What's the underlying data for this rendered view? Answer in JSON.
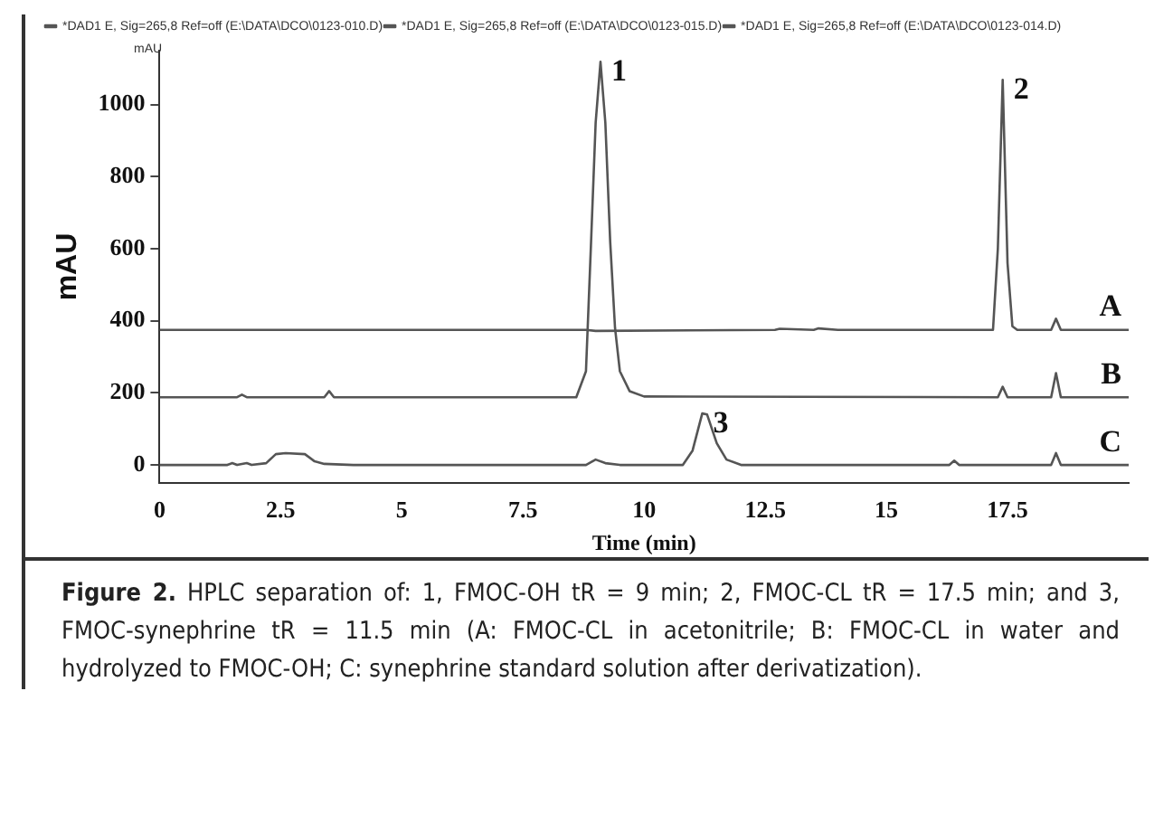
{
  "chart_data": {
    "type": "line",
    "xlabel": "Time (min)",
    "ylabel": "mAU",
    "xlim": [
      0,
      20
    ],
    "xticks": [
      0,
      2.5,
      5,
      7.5,
      10,
      12.5,
      15,
      17.5
    ],
    "ylim": [
      -50,
      1150
    ],
    "yticks": [
      0,
      200,
      400,
      600,
      800,
      1000
    ],
    "grid": false,
    "legend": "top left",
    "marker": "none",
    "line_style": "solid",
    "series": [
      {
        "name": "*DAD1 E, Sig=265,8 Ref=off (E:\\DATA\\DCO\\0123-010.D)",
        "color": "#555555",
        "x": [
          0,
          8.8,
          9.0,
          12.7,
          12.8,
          13.5,
          13.6,
          14.0,
          17.2,
          17.3,
          17.4,
          17.5,
          17.6,
          17.7,
          18.4,
          18.5,
          18.6,
          20
        ],
        "values": [
          375,
          375,
          372,
          375,
          378,
          375,
          379,
          375,
          375,
          600,
          1069,
          560,
          385,
          375,
          375,
          406,
          375,
          375
        ]
      },
      {
        "name": "*DAD1 E, Sig=265,8 Ref=off (E:\\DATA\\DCO\\0123-015.D)",
        "color": "#555555",
        "x": [
          0,
          1.6,
          1.7,
          1.8,
          3.4,
          3.5,
          3.6,
          8.6,
          8.8,
          8.9,
          9.0,
          9.1,
          9.2,
          9.3,
          9.4,
          9.5,
          9.7,
          10,
          17.3,
          17.4,
          17.5,
          18.4,
          18.5,
          18.6,
          20
        ],
        "values": [
          188,
          188,
          195,
          188,
          188,
          205,
          188,
          188,
          260,
          600,
          950,
          1119,
          950,
          620,
          380,
          260,
          205,
          190,
          188,
          217,
          188,
          188,
          255,
          188,
          188
        ]
      },
      {
        "name": "*DAD1 E, Sig=265,8 Ref=off (E:\\DATA\\DCO\\0123-014.D)",
        "color": "#555555",
        "x": [
          0,
          1.4,
          1.5,
          1.6,
          1.8,
          1.9,
          2.2,
          2.4,
          2.6,
          3.0,
          3.2,
          3.4,
          4,
          8.8,
          9.0,
          9.2,
          9.5,
          10.8,
          11.0,
          11.2,
          11.3,
          11.5,
          11.7,
          12,
          16.3,
          16.4,
          16.5,
          18.4,
          18.5,
          18.6,
          20
        ],
        "values": [
          0,
          0,
          5,
          0,
          5,
          0,
          5,
          30,
          33,
          30,
          10,
          3,
          0,
          0,
          15,
          5,
          0,
          0,
          40,
          143,
          140,
          60,
          15,
          0,
          0,
          12,
          0,
          0,
          33,
          0,
          0
        ]
      }
    ],
    "annotations": [
      {
        "text": "1",
        "x": 9.1,
        "y": 1119
      },
      {
        "text": "2",
        "x": 17.4,
        "y": 1069
      },
      {
        "text": "3",
        "x": 11.2,
        "y": 143
      },
      {
        "text": "A",
        "x": 20,
        "y": 375
      },
      {
        "text": "B",
        "x": 20,
        "y": 188
      },
      {
        "text": "C",
        "x": 20,
        "y": 0
      },
      "mAU",
      "Figure 2.",
      "HPLC separation of: 1, FMOC-OH tR = 9 min; 2, FMOC-CL tR = 17.5 min; and 3, FMOC-synephrine tR = 11.5 min (A: FMOC-CL in acetonitrile; B: FMOC-CL in water and hydrolyzed to FMOC-OH; C: synephrine standard solution after derivatization)."
    ]
  }
}
